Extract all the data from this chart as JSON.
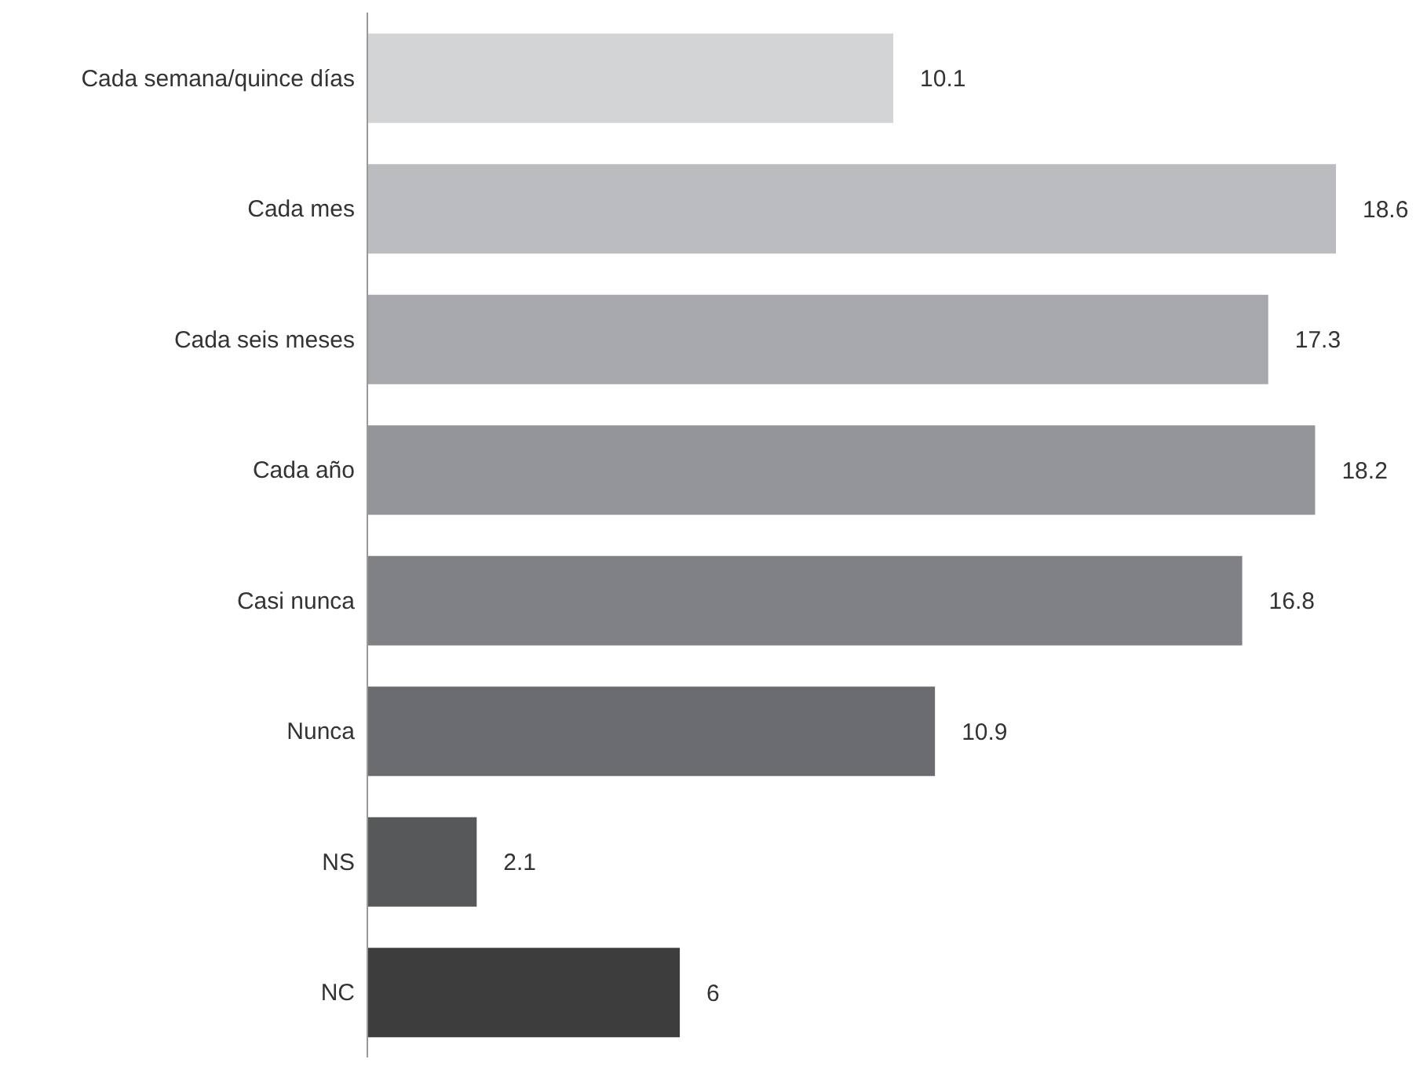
{
  "chart_data": {
    "type": "bar",
    "orientation": "horizontal",
    "categories": [
      "Cada semana/quince días",
      "Cada mes",
      "Cada seis meses",
      "Cada año",
      "Casi nunca",
      "Nunca",
      "NS",
      "NC"
    ],
    "values": [
      10.1,
      18.6,
      17.3,
      18.2,
      16.8,
      10.9,
      2.1,
      6
    ],
    "colors": [
      "#d3d4d6",
      "#bbbcbf",
      "#a7a8ab",
      "#949598",
      "#808184",
      "#6b6c6f",
      "#57585a",
      "#3d3d3d"
    ],
    "data_labels": true
  }
}
